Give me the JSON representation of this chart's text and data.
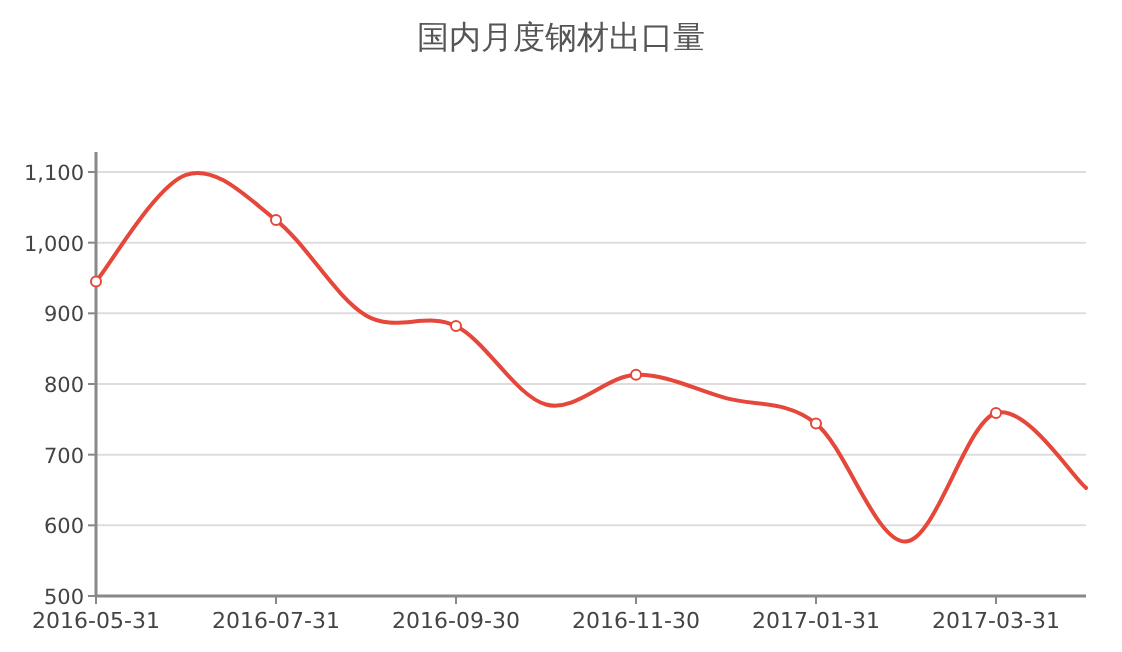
{
  "chart_data": {
    "type": "line",
    "title": "国内月度钢材出口量",
    "categories": [
      "2016-05-31",
      null,
      "2016-07-31",
      null,
      "2016-09-30",
      null,
      "2016-11-30",
      null,
      "2017-01-31",
      null,
      "2017-03-31",
      null
    ],
    "series": [
      {
        "color": "#e5483b",
        "values": [
          945,
          1096,
          1032,
          897,
          882,
          771,
          813,
          780,
          744,
          577,
          759,
          653
        ]
      }
    ],
    "ylim": [
      500,
      1100
    ],
    "yticks": [
      500,
      600,
      700,
      800,
      900,
      {
        "value": 1000,
        "label": "1,000"
      },
      {
        "value": 1100,
        "label": "1,100"
      }
    ],
    "grid": "y",
    "marker": "circle"
  }
}
